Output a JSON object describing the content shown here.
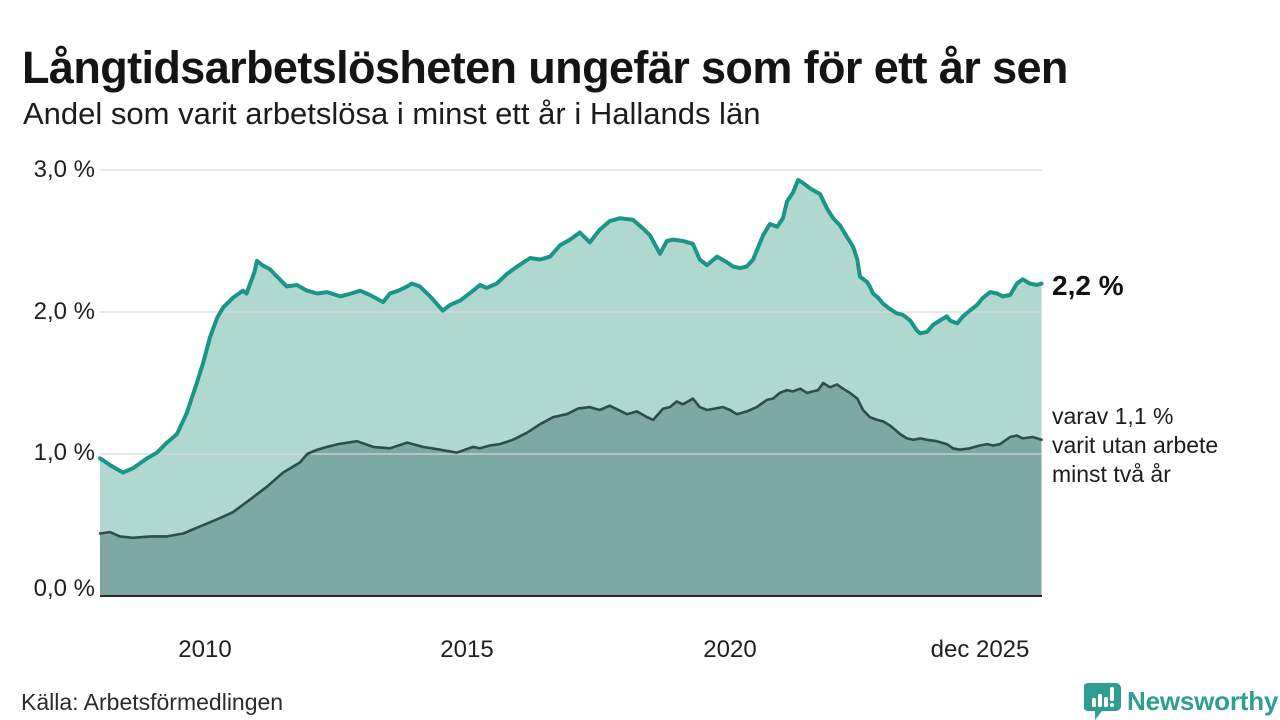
{
  "header": {
    "title": "Långtidsarbetslösheten ungefär som för ett år sen",
    "subtitle": "Andel som varit arbetslösa i minst ett år i Hallands län"
  },
  "labels": {
    "latest_value": "2,2 %",
    "annotation_line1": "varav 1,1 %",
    "annotation_line2": "varit utan arbete",
    "annotation_line3": "minst två år"
  },
  "footer": {
    "source": "Källa: Arbetsförmedlingen",
    "brand": "Newsworthy"
  },
  "colors": {
    "brand_teal": "#2f9e92",
    "title_text": "#141414",
    "background": "#ffffff"
  },
  "chart_data": {
    "type": "area",
    "title": "Långtidsarbetslösheten ungefär som för ett år sen",
    "subtitle": "Andel som varit arbetslösa i minst ett år i Hallands län",
    "xlabel": "",
    "ylabel": "",
    "xlim": [
      2008,
      2026
    ],
    "ylim": [
      0,
      3.0
    ],
    "grid": "horizontal",
    "grid_color": "#d9d9d9",
    "axis_color": "#2a2a2a",
    "y_ticks": [
      {
        "label": "3,0 %",
        "value": 3.0
      },
      {
        "label": "2,0 %",
        "value": 2.0
      },
      {
        "label": "1,0 %",
        "value": 1.0
      },
      {
        "label": "0,0 %",
        "value": 0.0
      }
    ],
    "x_ticks": [
      {
        "label": "2010",
        "year": 2010
      },
      {
        "label": "2015",
        "year": 2015
      },
      {
        "label": "2020",
        "year": 2020
      },
      {
        "label": "dec 2025",
        "year": 2025.99
      }
    ],
    "series": [
      {
        "name": "Arbetslösa minst ett år",
        "end_label": "2,2 %",
        "line_color": "#1a9688",
        "fill_color": "#b1d7d1",
        "line_width": 4,
        "x": [
          2008.0,
          2008.2,
          2008.44,
          2008.63,
          2008.9,
          2009.09,
          2009.28,
          2009.47,
          2009.66,
          2009.85,
          2009.97,
          2010.1,
          2010.24,
          2010.35,
          2010.54,
          2010.73,
          2010.8,
          2010.87,
          2010.95,
          2011.0,
          2011.1,
          2011.25,
          2011.38,
          2011.57,
          2011.76,
          2011.96,
          2012.15,
          2012.34,
          2012.59,
          2012.8,
          2012.97,
          2013.16,
          2013.41,
          2013.54,
          2013.7,
          2013.87,
          2013.96,
          2014.11,
          2014.31,
          2014.55,
          2014.69,
          2014.88,
          2015.13,
          2015.26,
          2015.39,
          2015.58,
          2015.78,
          2015.97,
          2016.22,
          2016.41,
          2016.6,
          2016.79,
          2016.98,
          2017.17,
          2017.36,
          2017.55,
          2017.74,
          2017.93,
          2018.18,
          2018.37,
          2018.51,
          2018.7,
          2018.83,
          2018.95,
          2019.14,
          2019.33,
          2019.46,
          2019.6,
          2019.79,
          2019.98,
          2020.1,
          2020.23,
          2020.36,
          2020.48,
          2020.67,
          2020.8,
          2020.94,
          2021.05,
          2021.13,
          2021.24,
          2021.34,
          2021.43,
          2021.57,
          2021.76,
          2021.89,
          2022.01,
          2022.14,
          2022.27,
          2022.39,
          2022.47,
          2022.52,
          2022.66,
          2022.71,
          2022.77,
          2022.87,
          2022.96,
          2023.1,
          2023.23,
          2023.34,
          2023.48,
          2023.61,
          2023.67,
          2023.8,
          2023.92,
          2024.05,
          2024.18,
          2024.24,
          2024.38,
          2024.49,
          2024.62,
          2024.76,
          2024.87,
          2025.01,
          2025.14,
          2025.25,
          2025.39,
          2025.52,
          2025.63,
          2025.77,
          2025.9,
          2025.99
        ],
        "values": [
          0.97,
          0.92,
          0.87,
          0.9,
          0.97,
          1.01,
          1.08,
          1.14,
          1.29,
          1.5,
          1.64,
          1.82,
          1.96,
          2.03,
          2.1,
          2.15,
          2.13,
          2.2,
          2.28,
          2.36,
          2.33,
          2.3,
          2.25,
          2.18,
          2.19,
          2.15,
          2.13,
          2.14,
          2.11,
          2.13,
          2.15,
          2.12,
          2.07,
          2.13,
          2.15,
          2.18,
          2.2,
          2.18,
          2.11,
          2.01,
          2.05,
          2.08,
          2.15,
          2.19,
          2.17,
          2.2,
          2.27,
          2.32,
          2.38,
          2.37,
          2.39,
          2.47,
          2.51,
          2.56,
          2.49,
          2.58,
          2.64,
          2.66,
          2.65,
          2.59,
          2.54,
          2.41,
          2.5,
          2.51,
          2.5,
          2.48,
          2.37,
          2.33,
          2.39,
          2.35,
          2.32,
          2.31,
          2.32,
          2.37,
          2.54,
          2.62,
          2.6,
          2.66,
          2.78,
          2.84,
          2.93,
          2.91,
          2.87,
          2.83,
          2.73,
          2.66,
          2.61,
          2.53,
          2.46,
          2.37,
          2.25,
          2.21,
          2.18,
          2.13,
          2.1,
          2.06,
          2.02,
          1.99,
          1.98,
          1.94,
          1.87,
          1.85,
          1.86,
          1.91,
          1.94,
          1.97,
          1.94,
          1.92,
          1.97,
          2.01,
          2.05,
          2.1,
          2.14,
          2.13,
          2.11,
          2.12,
          2.2,
          2.23,
          2.2,
          2.19,
          2.2
        ]
      },
      {
        "name": "varav utan arbete minst två år",
        "end_label": "1,1 %",
        "line_color": "#2e4e49",
        "fill_color": "#7da9a2",
        "line_width": 2.6,
        "x": [
          2008.0,
          2008.19,
          2008.38,
          2008.63,
          2008.96,
          2009.28,
          2009.59,
          2009.91,
          2010.24,
          2010.54,
          2010.87,
          2011.19,
          2011.5,
          2011.82,
          2011.96,
          2012.15,
          2012.34,
          2012.55,
          2012.91,
          2013.22,
          2013.54,
          2013.87,
          2014.17,
          2014.5,
          2014.82,
          2015.13,
          2015.26,
          2015.45,
          2015.64,
          2015.89,
          2016.16,
          2016.41,
          2016.66,
          2016.92,
          2017.13,
          2017.36,
          2017.55,
          2017.74,
          2018.07,
          2018.26,
          2018.45,
          2018.57,
          2018.76,
          2018.89,
          2019.02,
          2019.14,
          2019.33,
          2019.46,
          2019.6,
          2019.9,
          2020.04,
          2020.17,
          2020.36,
          2020.55,
          2020.74,
          2020.86,
          2020.99,
          2021.13,
          2021.24,
          2021.38,
          2021.51,
          2021.72,
          2021.82,
          2021.95,
          2022.08,
          2022.2,
          2022.33,
          2022.47,
          2022.58,
          2022.71,
          2022.85,
          2022.96,
          2023.1,
          2023.29,
          2023.42,
          2023.54,
          2023.67,
          2023.8,
          2023.99,
          2024.18,
          2024.3,
          2024.43,
          2024.62,
          2024.81,
          2024.95,
          2025.06,
          2025.2,
          2025.39,
          2025.52,
          2025.63,
          2025.82,
          2025.99
        ],
        "values": [
          0.44,
          0.45,
          0.42,
          0.41,
          0.42,
          0.42,
          0.44,
          0.49,
          0.54,
          0.59,
          0.68,
          0.77,
          0.87,
          0.94,
          1.0,
          1.03,
          1.05,
          1.07,
          1.09,
          1.05,
          1.04,
          1.08,
          1.05,
          1.03,
          1.01,
          1.05,
          1.04,
          1.06,
          1.07,
          1.1,
          1.15,
          1.21,
          1.26,
          1.28,
          1.32,
          1.33,
          1.31,
          1.34,
          1.28,
          1.3,
          1.26,
          1.24,
          1.32,
          1.33,
          1.37,
          1.35,
          1.39,
          1.33,
          1.31,
          1.33,
          1.31,
          1.28,
          1.3,
          1.33,
          1.38,
          1.39,
          1.43,
          1.45,
          1.44,
          1.46,
          1.43,
          1.45,
          1.5,
          1.47,
          1.49,
          1.46,
          1.43,
          1.39,
          1.31,
          1.26,
          1.24,
          1.23,
          1.2,
          1.14,
          1.11,
          1.1,
          1.11,
          1.1,
          1.09,
          1.07,
          1.04,
          1.03,
          1.04,
          1.06,
          1.07,
          1.06,
          1.07,
          1.12,
          1.13,
          1.11,
          1.12,
          1.1
        ]
      }
    ]
  }
}
